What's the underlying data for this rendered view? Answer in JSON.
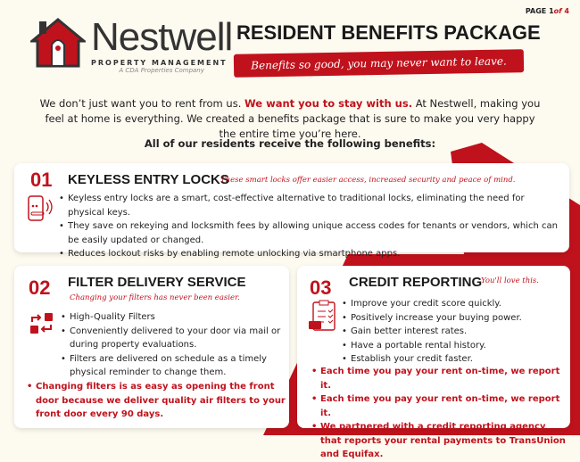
{
  "page": {
    "label": "PAGE",
    "current": "1",
    "of": "of",
    "total": "4"
  },
  "logo": {
    "name": "Nestwell",
    "subtitle": "PROPERTY MANAGEMENT",
    "company": "A CDA Properties Company"
  },
  "title": "RESIDENT BENEFITS PACKAGE",
  "tagline": "Benefits so good, you may never want to leave.",
  "intro": {
    "part1": "We don’t just want you to rent from us. ",
    "highlight": "We want you to stay with us.",
    "part2": " At Nestwell, making you feel at home is everything. We created a benefits package that is sure to make you very happy the entire time you’re here."
  },
  "lead": "All of our residents receive the following benefits:",
  "colors": {
    "accent": "#c0121c",
    "background": "#fdfaf0"
  },
  "benefits": [
    {
      "number": "01",
      "title": "KEYLESS ENTRY LOCKS",
      "tagline": "These smart locks offer easier access, increased security and peace of mind.",
      "icon": "smart-lock-icon",
      "bullets": [
        "Keyless entry locks are a smart, cost-effective alternative to traditional locks, eliminating the need for physical keys.",
        "They save on rekeying and locksmith fees by allowing unique access codes for tenants or vendors, which can be easily updated or changed.",
        "Reduces lockout risks by enabling remote unlocking via smartphone apps."
      ]
    },
    {
      "number": "02",
      "title": "FILTER DELIVERY SERVICE",
      "tagline": "Changing your filters has never been easier.",
      "icon": "exchange-icon",
      "bullets": [
        "High-Quality Filters",
        "Conveniently delivered to your door via mail or during property evaluations.",
        "Filters are delivered on schedule as a timely physical reminder to change them."
      ],
      "highlights": [
        "Changing filters is as easy as opening the front door because we deliver quality air filters to your front door every 90 days."
      ]
    },
    {
      "number": "03",
      "title": "CREDIT REPORTING",
      "tagline": "You'll love this.",
      "icon": "credit-checklist-icon",
      "bullets": [
        "Improve your credit score quickly.",
        "Positively increase your buying power.",
        "Gain better interest rates.",
        "Have a portable rental history.",
        "Establish your credit faster."
      ],
      "highlights": [
        "Each time you pay your rent on-time, we report it.",
        "Each time you pay your rent on-time, we report it.",
        "We partnered with a credit reporting agency that reports your rental payments to TransUnion and Equifax."
      ]
    }
  ]
}
